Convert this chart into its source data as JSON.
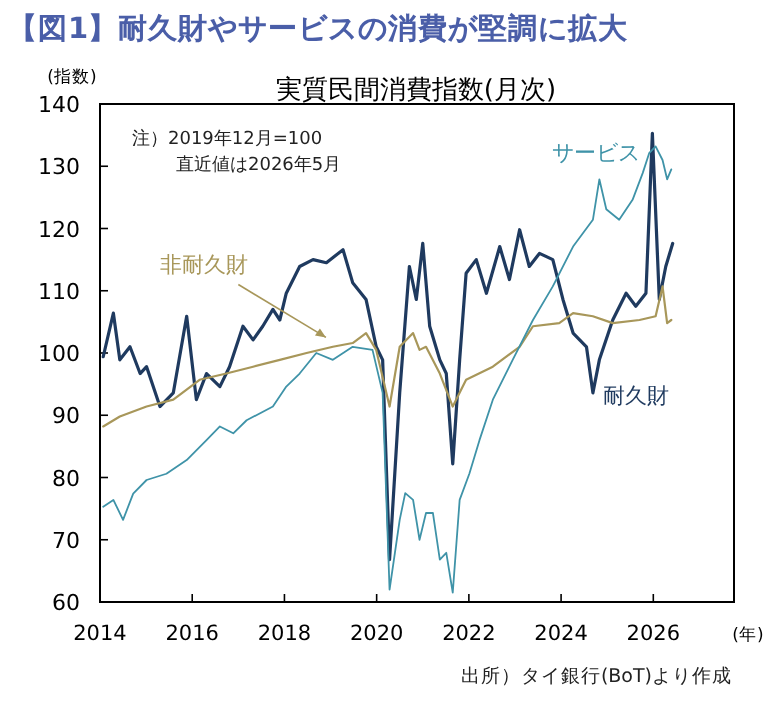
{
  "chart_data": {
    "type": "line",
    "title": "【図1】耐久財やサービスの消費が堅調に拡大",
    "subtitle": "実質民間消費指数(月次)",
    "ylabel": "(指数)",
    "xlabel": "(年)",
    "annotations": [
      "注）2019年12月=100",
      "直近値は2026年5月",
      "出所）タイ銀行(BoT)より作成"
    ],
    "xlim": [
      2014,
      2027.75
    ],
    "xticks": [
      2014,
      2016,
      2018,
      2020,
      2022,
      2024,
      2026
    ],
    "ylim": [
      60,
      140
    ],
    "yticks": [
      60,
      70,
      80,
      90,
      100,
      110,
      120,
      130,
      140
    ],
    "grid": false,
    "marker": "none",
    "line_style": "solid",
    "series": [
      {
        "name": "耐久財",
        "color": "#1f3a5f",
        "x": [
          2014.07,
          2014.29,
          2014.43,
          2014.65,
          2014.87,
          2015.01,
          2015.3,
          2015.59,
          2015.88,
          2016.09,
          2016.31,
          2016.6,
          2016.81,
          2017.1,
          2017.32,
          2017.53,
          2017.75,
          2017.9,
          2018.04,
          2018.33,
          2018.62,
          2018.91,
          2019.27,
          2019.48,
          2019.77,
          2019.99,
          2020.13,
          2020.28,
          2020.5,
          2020.71,
          2020.86,
          2021.0,
          2021.15,
          2021.37,
          2021.51,
          2021.65,
          2021.8,
          2021.94,
          2022.16,
          2022.38,
          2022.67,
          2022.88,
          2023.1,
          2023.31,
          2023.53,
          2023.82,
          2024.04,
          2024.26,
          2024.55,
          2024.69,
          2024.83,
          2025.12,
          2025.41,
          2025.62,
          2025.84,
          2025.98,
          2026.13,
          2026.27,
          2026.42
        ],
        "values": [
          99.4,
          106.4,
          98.9,
          101,
          96.7,
          97.8,
          91.4,
          93.6,
          105.9,
          92.5,
          96.7,
          94.6,
          97.8,
          104.3,
          102.1,
          104.3,
          107,
          105.3,
          109.6,
          113.9,
          115,
          114.5,
          116.6,
          111.3,
          108.6,
          101,
          98.9,
          66.8,
          93.6,
          113.9,
          108.6,
          117.6,
          104.3,
          98.9,
          96.7,
          82.2,
          98.9,
          112.8,
          115,
          109.6,
          117.1,
          111.8,
          119.8,
          113.9,
          116,
          115,
          108.6,
          103.2,
          101,
          93.6,
          98.9,
          105.3,
          109.6,
          107.5,
          109.6,
          135.3,
          108.6,
          113.9,
          117.6
        ]
      },
      {
        "name": "非耐久財",
        "color": "#a8975a",
        "x": [
          2014.07,
          2014.43,
          2015.01,
          2015.59,
          2016.16,
          2016.74,
          2017.32,
          2017.9,
          2018.48,
          2019.05,
          2019.48,
          2019.77,
          2019.99,
          2020.28,
          2020.5,
          2020.79,
          2020.93,
          2021.07,
          2021.37,
          2021.65,
          2021.94,
          2022.52,
          2023.1,
          2023.39,
          2023.96,
          2024.26,
          2024.69,
          2025.12,
          2025.7,
          2026.05,
          2026.2,
          2026.3,
          2026.39
        ],
        "values": [
          88.2,
          89.8,
          91.4,
          92.5,
          95.7,
          96.7,
          97.8,
          98.9,
          100,
          101,
          101.6,
          103.2,
          100.5,
          91.4,
          101,
          103.2,
          100.5,
          101,
          96.7,
          91.4,
          95.7,
          97.8,
          101,
          104.3,
          104.8,
          106.4,
          105.9,
          104.8,
          105.3,
          105.9,
          110.7,
          104.8,
          105.3
        ]
      },
      {
        "name": "サービス",
        "color": "#3f93a8",
        "x": [
          2014.07,
          2014.29,
          2014.5,
          2014.72,
          2015.01,
          2015.44,
          2015.88,
          2016.31,
          2016.6,
          2016.89,
          2017.18,
          2017.75,
          2018.04,
          2018.33,
          2018.69,
          2019.05,
          2019.48,
          2019.91,
          2020.13,
          2020.28,
          2020.5,
          2020.62,
          2020.79,
          2020.93,
          2021.07,
          2021.22,
          2021.37,
          2021.51,
          2021.65,
          2021.8,
          2022.01,
          2022.23,
          2022.52,
          2022.95,
          2023.39,
          2023.82,
          2024.26,
          2024.69,
          2024.83,
          2024.98,
          2025.26,
          2025.55,
          2025.77,
          2025.91,
          2026.05,
          2026.2,
          2026.3,
          2026.39
        ],
        "values": [
          75.3,
          76.4,
          73.2,
          77.4,
          79.6,
          80.6,
          82.8,
          86,
          88.2,
          87.1,
          89.2,
          91.4,
          94.6,
          96.7,
          100,
          98.9,
          101,
          100.5,
          93.6,
          62,
          73.2,
          77.5,
          76.4,
          70,
          74.3,
          74.3,
          66.8,
          67.9,
          61.5,
          76.4,
          80.6,
          86,
          92.5,
          98.9,
          105.3,
          110.7,
          117.1,
          121.4,
          127.9,
          123.1,
          121.4,
          124.6,
          128.9,
          132.1,
          133.2,
          131,
          127.9,
          129.5
        ]
      }
    ]
  }
}
